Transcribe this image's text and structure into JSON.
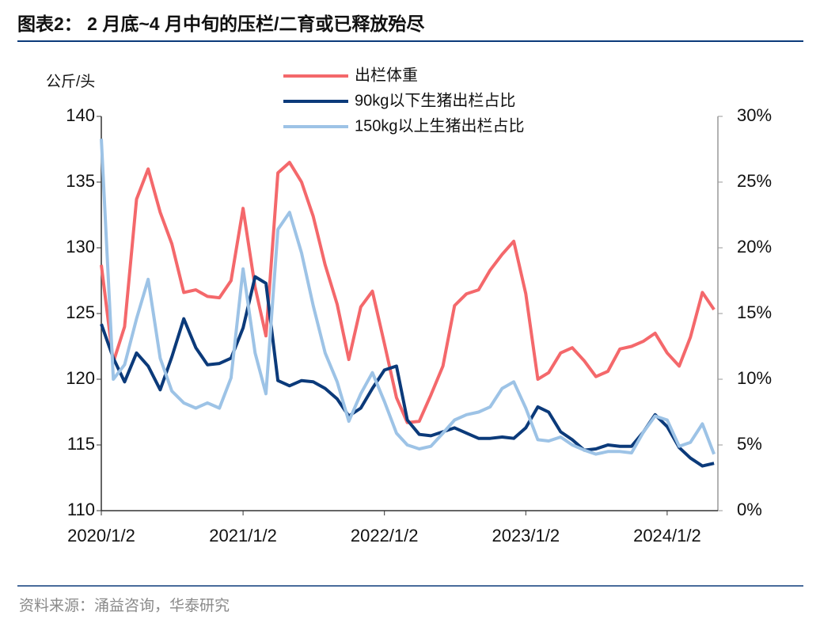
{
  "chart_data": {
    "type": "line",
    "title": "图表2：  2 月底~4 月中旬的压栏/二育或已释放殆尽",
    "y_label": "公斤/头",
    "source": "资料来源：涌益咨询，华泰研究",
    "x": [
      "2020-01-02",
      "2020-02-02",
      "2020-03-02",
      "2020-04-02",
      "2020-05-02",
      "2020-06-02",
      "2020-07-02",
      "2020-08-02",
      "2020-09-02",
      "2020-10-02",
      "2020-11-02",
      "2020-12-02",
      "2021-01-02",
      "2021-02-02",
      "2021-03-02",
      "2021-04-02",
      "2021-05-02",
      "2021-06-02",
      "2021-07-02",
      "2021-08-02",
      "2021-09-02",
      "2021-10-02",
      "2021-11-02",
      "2021-12-02",
      "2022-01-02",
      "2022-02-02",
      "2022-03-02",
      "2022-04-02",
      "2022-05-02",
      "2022-06-02",
      "2022-07-02",
      "2022-08-02",
      "2022-09-02",
      "2022-10-02",
      "2022-11-02",
      "2022-12-02",
      "2023-01-02",
      "2023-02-02",
      "2023-03-02",
      "2023-04-02",
      "2023-05-02",
      "2023-06-02",
      "2023-07-02",
      "2023-08-02",
      "2023-09-02",
      "2023-10-02",
      "2023-11-02",
      "2023-12-02",
      "2024-01-02",
      "2024-02-02",
      "2024-03-02",
      "2024-04-02",
      "2024-05-02"
    ],
    "series": [
      {
        "name": "出栏体重",
        "color": "#f4686b",
        "axis": "y",
        "values": [
          128.7,
          121.3,
          124.0,
          133.7,
          136.0,
          132.7,
          130.3,
          126.6,
          126.8,
          126.3,
          126.2,
          127.5,
          133.0,
          127.0,
          123.3,
          135.7,
          136.5,
          135.0,
          132.4,
          128.7,
          125.7,
          121.5,
          125.5,
          126.7,
          122.7,
          118.6,
          116.7,
          116.8,
          118.8,
          121.0,
          125.6,
          126.5,
          126.8,
          128.3,
          129.5,
          130.5,
          126.5,
          120.0,
          120.5,
          122.0,
          122.4,
          121.4,
          120.2,
          120.6,
          122.3,
          122.5,
          122.9,
          123.5,
          122.0,
          121.0,
          123.2,
          126.6,
          125.3
        ]
      },
      {
        "name": "90kg以下生猪出栏占比",
        "color": "#0b3a7a",
        "axis": "y2",
        "values": [
          14.2,
          11.6,
          9.8,
          12.0,
          11.0,
          9.2,
          11.7,
          14.6,
          12.4,
          11.1,
          11.2,
          11.6,
          13.9,
          17.8,
          17.3,
          9.9,
          9.5,
          9.9,
          9.8,
          9.3,
          8.5,
          7.2,
          7.8,
          9.3,
          10.7,
          11.0,
          6.9,
          5.8,
          5.7,
          6.0,
          6.3,
          5.9,
          5.5,
          5.5,
          5.6,
          5.5,
          6.3,
          7.9,
          7.5,
          6.0,
          5.4,
          4.6,
          4.7,
          5.0,
          4.9,
          4.9,
          6.0,
          7.3,
          6.4,
          4.8,
          4.0,
          3.4,
          3.6
        ]
      },
      {
        "name": "150kg以上生猪出栏占比",
        "color": "#9dc3e6",
        "axis": "y2",
        "values": [
          28.3,
          10.0,
          11.1,
          14.6,
          17.6,
          11.6,
          9.1,
          8.2,
          7.8,
          8.2,
          7.8,
          10.1,
          18.4,
          12.0,
          8.9,
          21.4,
          22.7,
          19.6,
          15.6,
          12.0,
          9.8,
          6.8,
          8.9,
          10.5,
          8.3,
          5.9,
          5.0,
          4.7,
          4.9,
          5.9,
          6.9,
          7.3,
          7.5,
          7.9,
          9.3,
          9.8,
          7.8,
          5.4,
          5.3,
          5.6,
          5.0,
          4.6,
          4.3,
          4.5,
          4.5,
          4.4,
          6.0,
          7.2,
          6.9,
          4.9,
          5.2,
          6.6,
          4.3
        ]
      }
    ],
    "xlim": [
      "2020-01-02",
      "2024-05-12"
    ],
    "xticks": [
      {
        "value": "2020-01-02",
        "label": "2020/1/2"
      },
      {
        "value": "2021-01-02",
        "label": "2021/1/2"
      },
      {
        "value": "2022-01-02",
        "label": "2022/1/2"
      },
      {
        "value": "2023-01-02",
        "label": "2023/1/2"
      },
      {
        "value": "2024-01-02",
        "label": "2024/1/2"
      }
    ],
    "ylim": [
      110,
      140
    ],
    "yticks": [
      110,
      115,
      120,
      125,
      130,
      135,
      140
    ],
    "y2lim": [
      0,
      30
    ],
    "y2ticks": [
      {
        "value": 0,
        "label": "0%"
      },
      {
        "value": 5,
        "label": "5%"
      },
      {
        "value": 10,
        "label": "10%"
      },
      {
        "value": 15,
        "label": "15%"
      },
      {
        "value": 20,
        "label": "20%"
      },
      {
        "value": 25,
        "label": "25%"
      },
      {
        "value": 30,
        "label": "30%"
      }
    ]
  }
}
